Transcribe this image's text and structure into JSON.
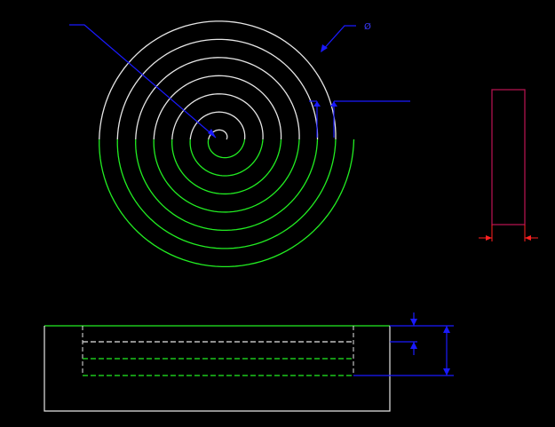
{
  "drawing": {
    "background_color": "#000000",
    "colors": {
      "white": "#e6e6e6",
      "green": "#22ee22",
      "blue": "#1a1aff",
      "red": "#ff2020",
      "magenta": "#b0124e",
      "light_blue": "#3a3aff"
    },
    "spiral": {
      "callout_label": "",
      "diameter_symbol": "Ø"
    }
  }
}
